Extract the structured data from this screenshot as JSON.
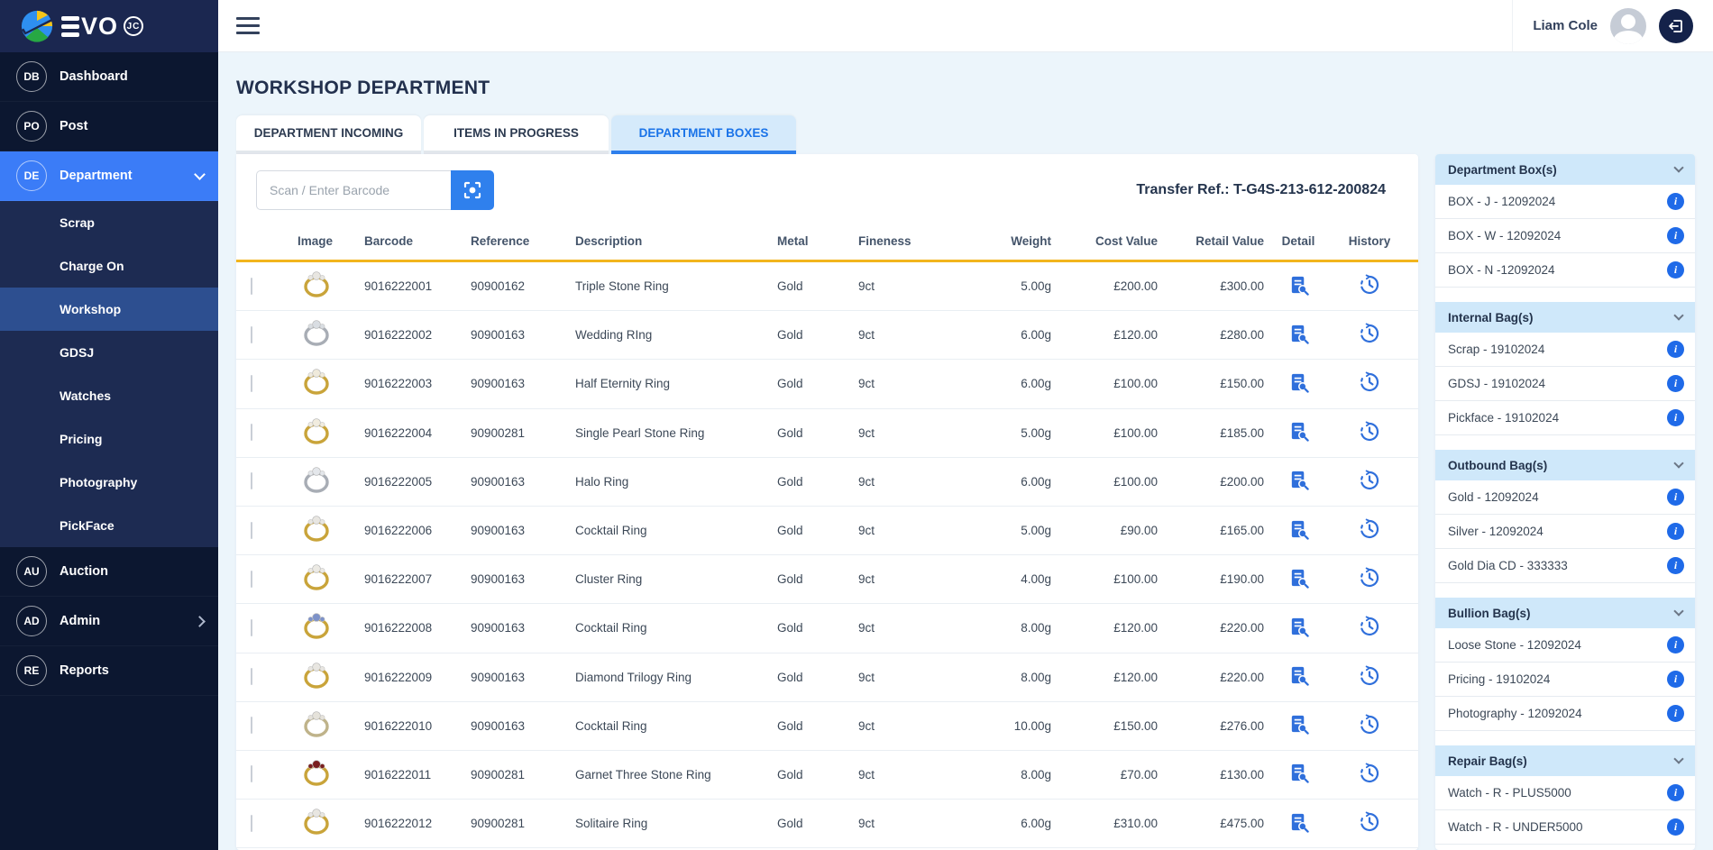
{
  "brand": {
    "logo_text": "VO",
    "logo_badge": "JC"
  },
  "topbar": {
    "user_name": "Liam Cole"
  },
  "sidebar": {
    "items": [
      {
        "abbr": "DB",
        "label": "Dashboard"
      },
      {
        "abbr": "PO",
        "label": "Post"
      },
      {
        "abbr": "DE",
        "label": "Department",
        "active": true,
        "chevron": "down",
        "children": [
          "Scrap",
          "Charge On",
          "Workshop",
          "GDSJ",
          "Watches",
          "Pricing",
          "Photography",
          "PickFace"
        ],
        "selected_child": "Workshop"
      },
      {
        "abbr": "AU",
        "label": "Auction"
      },
      {
        "abbr": "AD",
        "label": "Admin",
        "chevron": "right"
      },
      {
        "abbr": "RE",
        "label": "Reports"
      }
    ]
  },
  "page": {
    "title": "WORKSHOP DEPARTMENT",
    "tabs": [
      "DEPARTMENT INCOMING",
      "ITEMS IN PROGRESS",
      "DEPARTMENT BOXES"
    ],
    "active_tab": "DEPARTMENT BOXES",
    "scan_placeholder": "Scan / Enter Barcode",
    "transfer_ref": "Transfer Ref.: T-G4S-213-612-200824"
  },
  "table": {
    "columns": [
      "",
      "Image",
      "Barcode",
      "Reference",
      "Description",
      "Metal",
      "Fineness",
      "Weight",
      "Cost Value",
      "Retail Value",
      "Detail",
      "History"
    ],
    "rows": [
      {
        "barcode": "9016222001",
        "reference": "90900162",
        "description": "Triple Stone Ring",
        "metal": "Gold",
        "fineness": "9ct",
        "weight": "5.00g",
        "cost": "£200.00",
        "retail": "£300.00",
        "band": "#c9a43a",
        "gem": "#e8e6e1"
      },
      {
        "barcode": "9016222002",
        "reference": "90900163",
        "description": "Wedding RIng",
        "metal": "Gold",
        "fineness": "9ct",
        "weight": "6.00g",
        "cost": "£120.00",
        "retail": "£280.00",
        "band": "#a8adb5",
        "gem": "#d9dde2"
      },
      {
        "barcode": "9016222003",
        "reference": "90900163",
        "description": "Half Eternity Ring",
        "metal": "Gold",
        "fineness": "9ct",
        "weight": "6.00g",
        "cost": "£100.00",
        "retail": "£150.00",
        "band": "#c9a43a",
        "gem": "#efeadb"
      },
      {
        "barcode": "9016222004",
        "reference": "90900281",
        "description": "Single Pearl Stone Ring",
        "metal": "Gold",
        "fineness": "9ct",
        "weight": "5.00g",
        "cost": "£100.00",
        "retail": "£185.00",
        "band": "#c9a43a",
        "gem": "#f1ecdf"
      },
      {
        "barcode": "9016222005",
        "reference": "90900163",
        "description": "Halo Ring",
        "metal": "Gold",
        "fineness": "9ct",
        "weight": "6.00g",
        "cost": "£100.00",
        "retail": "£200.00",
        "band": "#a8adb5",
        "gem": "#e4e7eb"
      },
      {
        "barcode": "9016222006",
        "reference": "90900163",
        "description": "Cocktail Ring",
        "metal": "Gold",
        "fineness": "9ct",
        "weight": "5.00g",
        "cost": "£90.00",
        "retail": "£165.00",
        "band": "#c9a43a",
        "gem": "#e8e6e1"
      },
      {
        "barcode": "9016222007",
        "reference": "90900163",
        "description": "Cluster Ring",
        "metal": "Gold",
        "fineness": "9ct",
        "weight": "4.00g",
        "cost": "£100.00",
        "retail": "£190.00",
        "band": "#c9a43a",
        "gem": "#eceae4"
      },
      {
        "barcode": "9016222008",
        "reference": "90900163",
        "description": "Cocktail Ring",
        "metal": "Gold",
        "fineness": "9ct",
        "weight": "8.00g",
        "cost": "£120.00",
        "retail": "£220.00",
        "band": "#c9a43a",
        "gem": "#7d92c9"
      },
      {
        "barcode": "9016222009",
        "reference": "90900163",
        "description": "Diamond Trilogy Ring",
        "metal": "Gold",
        "fineness": "9ct",
        "weight": "8.00g",
        "cost": "£120.00",
        "retail": "£220.00",
        "band": "#c9a43a",
        "gem": "#e8e6e1"
      },
      {
        "barcode": "9016222010",
        "reference": "90900163",
        "description": "Cocktail Ring",
        "metal": "Gold",
        "fineness": "9ct",
        "weight": "10.00g",
        "cost": "£150.00",
        "retail": "£276.00",
        "band": "#bfb38a",
        "gem": "#e5e2da"
      },
      {
        "barcode": "9016222011",
        "reference": "90900281",
        "description": "Garnet Three Stone Ring",
        "metal": "Gold",
        "fineness": "9ct",
        "weight": "8.00g",
        "cost": "£70.00",
        "retail": "£130.00",
        "band": "#c9a43a",
        "gem": "#7a1f1f"
      },
      {
        "barcode": "9016222012",
        "reference": "90900281",
        "description": "Solitaire Ring",
        "metal": "Gold",
        "fineness": "9ct",
        "weight": "6.00g",
        "cost": "£310.00",
        "retail": "£475.00",
        "band": "#c9a43a",
        "gem": "#e8e6e1"
      }
    ]
  },
  "panel": {
    "sections": [
      {
        "title": "Department Box(s)",
        "items": [
          "BOX - J - 12092024",
          "BOX - W - 12092024",
          "BOX - N -12092024"
        ]
      },
      {
        "title": "Internal Bag(s)",
        "items": [
          "Scrap - 19102024",
          "GDSJ - 19102024",
          "Pickface - 19102024"
        ]
      },
      {
        "title": "Outbound Bag(s)",
        "items": [
          "Gold - 12092024",
          "Silver - 12092024",
          "Gold Dia CD - 333333"
        ]
      },
      {
        "title": "Bullion Bag(s)",
        "items": [
          "Loose Stone - 12092024",
          "Pricing - 19102024",
          "Photography - 12092024"
        ]
      },
      {
        "title": "Repair Bag(s)",
        "items": [
          "Watch - R - PLUS5000",
          "Watch - R - UNDER5000"
        ]
      }
    ]
  },
  "colors": {
    "accent_blue": "#2f80ed",
    "active_tab_bg": "#d5eafb",
    "header_underline_yellow": "#f2b51d",
    "sidebar_navy": "#0c1730",
    "active_nav_blue": "#3b7cf7",
    "selected_sub_blue": "#2d4f90",
    "panel_header_blue": "#cfe8fa",
    "info_icon_blue": "#1f6ae8"
  }
}
